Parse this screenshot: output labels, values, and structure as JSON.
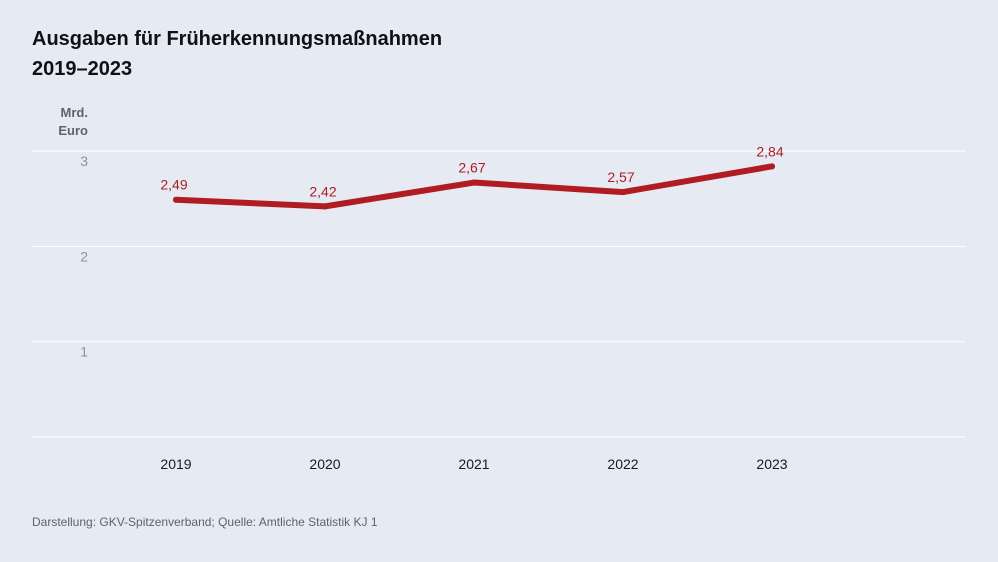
{
  "title": {
    "line1": "Ausgaben für Früherkennungsmaßnahmen",
    "line2": "2019–2023"
  },
  "unit": {
    "line1": "Mrd.",
    "line2": "Euro"
  },
  "source": "Darstellung: GKV-Spitzenverband; Quelle: Amtliche Statistik KJ 1",
  "colors": {
    "background": "#e6eaf2",
    "line": "#b01c22",
    "gridline": "#ffffff"
  },
  "chart_data": {
    "type": "line",
    "title": "Ausgaben für Früherkennungsmaßnahmen 2019–2023",
    "ylabel": "Mrd. Euro",
    "xlabel": "",
    "categories": [
      "2019",
      "2020",
      "2021",
      "2022",
      "2023"
    ],
    "series": [
      {
        "values": [
          2.49,
          2.42,
          2.67,
          2.57,
          2.84
        ],
        "labels": [
          "2,49",
          "2,42",
          "2,67",
          "2,57",
          "2,84"
        ],
        "color": "#b01c22"
      }
    ],
    "yticks": [
      {
        "value": 1,
        "label": "1"
      },
      {
        "value": 2,
        "label": "2"
      },
      {
        "value": 3,
        "label": "3"
      }
    ],
    "ylim": [
      0,
      3
    ],
    "grid": true,
    "legend": "none"
  }
}
